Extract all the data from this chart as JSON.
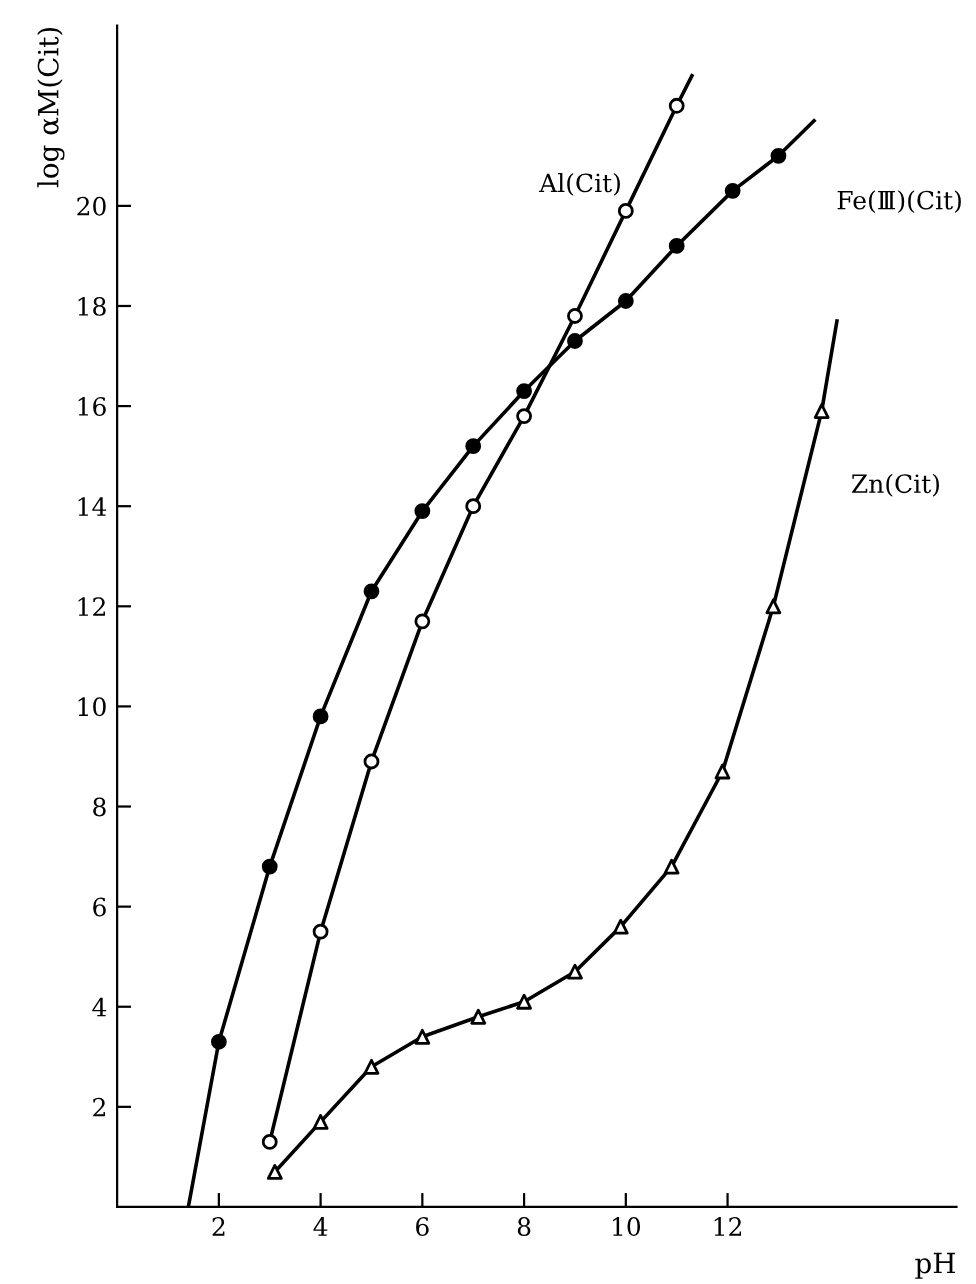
{
  "chart_data": {
    "type": "line",
    "xlabel": "pH",
    "ylabel": "log αM(Cit)",
    "xlim": [
      0,
      16.5
    ],
    "ylim": [
      0,
      23.6
    ],
    "xticks": [
      2,
      4,
      6,
      8,
      10,
      12
    ],
    "yticks": [
      2,
      4,
      6,
      8,
      10,
      12,
      14,
      16,
      18,
      20
    ],
    "grid": false,
    "legend": false,
    "series": [
      {
        "name": "Fe(Ⅲ)(Cit)",
        "color": "#000000",
        "marker": "none",
        "line_style": "solid",
        "x": [
          1.4,
          2,
          3,
          4,
          5,
          6,
          7,
          8,
          9,
          10,
          11,
          12.1,
          13,
          13.7
        ],
        "values": [
          0,
          3.3,
          6.8,
          9.8,
          12.3,
          13.9,
          15.2,
          16.3,
          17.3,
          18.1,
          19.2,
          20.3,
          21.0,
          21.7
        ]
      },
      {
        "name": "Al(Cit)",
        "color": "#000000",
        "marker": "none",
        "line_style": "solid",
        "x": [
          3,
          4,
          5,
          6,
          7,
          8,
          9,
          10,
          11,
          11.3
        ],
        "values": [
          1.3,
          5.5,
          8.9,
          11.7,
          14.0,
          15.8,
          17.8,
          19.9,
          22.0,
          22.6
        ]
      },
      {
        "name": "Zn(Cit)",
        "color": "#000000",
        "marker": "none",
        "line_style": "solid",
        "x": [
          3.1,
          4,
          5,
          6,
          7.1,
          8,
          9,
          9.9,
          10.9,
          11.9,
          12.9,
          13.85,
          14.0,
          14.15
        ],
        "values": [
          0.7,
          1.7,
          2.8,
          3.4,
          3.8,
          4.1,
          4.7,
          5.6,
          6.8,
          8.7,
          12.0,
          15.9,
          16.8,
          17.7
        ]
      },
      {
        "type": "scatter",
        "color": "#000000",
        "marker": "circle",
        "x": [
          2,
          3,
          4,
          5,
          6,
          7,
          8,
          9,
          10,
          11,
          12.1,
          13
        ],
        "values": [
          3.3,
          6.8,
          9.8,
          12.3,
          13.9,
          15.2,
          16.3,
          17.3,
          18.1,
          19.2,
          20.3,
          21.0
        ]
      },
      {
        "type": "scatter",
        "color": "#ffffff",
        "marker": "circle",
        "x": [
          3,
          4,
          5,
          6,
          7,
          8,
          9,
          10,
          11
        ],
        "values": [
          1.3,
          5.5,
          8.9,
          11.7,
          14.0,
          15.8,
          17.8,
          19.9,
          22.0
        ]
      },
      {
        "type": "scatter",
        "color": "#ffffff",
        "marker": "triangle",
        "x": [
          3.1,
          4,
          5,
          6,
          7.1,
          8,
          9,
          9.9,
          10.9,
          11.9,
          12.9,
          13.85
        ],
        "values": [
          0.7,
          1.7,
          2.8,
          3.4,
          3.8,
          4.1,
          4.7,
          5.6,
          6.8,
          8.7,
          12.0,
          15.9
        ]
      }
    ]
  }
}
